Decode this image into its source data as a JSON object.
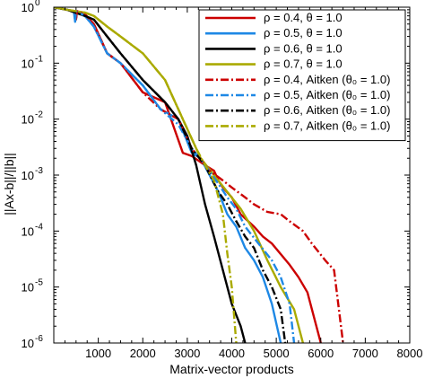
{
  "chart_data": {
    "type": "line",
    "title": "",
    "xlabel": "Matrix-vector products",
    "ylabel": "||Ax-b||/||b||",
    "xlim": [
      0,
      8000
    ],
    "ylim": [
      1e-06,
      1
    ],
    "yscale": "log",
    "grid": false,
    "legend_position": "top-right",
    "x_ticks": [
      "0",
      "1000",
      "2000",
      "3000",
      "4000",
      "5000",
      "6000",
      "7000",
      "8000"
    ],
    "y_ticks": [
      {
        "base": "10",
        "exp": "0"
      },
      {
        "base": "10",
        "exp": "-1"
      },
      {
        "base": "10",
        "exp": "-2"
      },
      {
        "base": "10",
        "exp": "-3"
      },
      {
        "base": "10",
        "exp": "-4"
      },
      {
        "base": "10",
        "exp": "-5"
      },
      {
        "base": "10",
        "exp": "-6"
      }
    ],
    "series": [
      {
        "name": "ρ = 0.4, θ = 1.0",
        "color": "#cc0000",
        "dash": "solid",
        "x": [
          0,
          300,
          450,
          500,
          520,
          700,
          900,
          1200,
          1500,
          2000,
          2500,
          2900,
          3100,
          3400,
          3600,
          3700,
          3800,
          4000,
          4200,
          4500,
          4700,
          4900,
          5300,
          5500,
          5700,
          6000
        ],
        "y": [
          1,
          0.9,
          0.85,
          0.6,
          0.85,
          0.75,
          0.5,
          0.15,
          0.1,
          0.03,
          0.02,
          0.0025,
          0.0022,
          0.0015,
          0.0012,
          0.0008,
          0.0006,
          0.0004,
          0.0002,
          0.00012,
          8e-05,
          6e-05,
          2.5e-05,
          1.5e-05,
          8e-06,
          1e-06
        ]
      },
      {
        "name": "ρ = 0.5, θ = 1.0",
        "color": "#1e88e5",
        "dash": "solid",
        "x": [
          0,
          300,
          450,
          480,
          500,
          700,
          900,
          1200,
          1500,
          2000,
          2400,
          2800,
          3100,
          3300,
          3500,
          3700,
          3900,
          4100,
          4300,
          4500,
          4700,
          4900,
          5100
        ],
        "y": [
          1,
          0.9,
          0.85,
          0.55,
          0.85,
          0.7,
          0.45,
          0.15,
          0.1,
          0.04,
          0.015,
          0.01,
          0.0025,
          0.002,
          0.001,
          0.0005,
          0.0002,
          0.00012,
          5e-05,
          3e-05,
          1.5e-05,
          5e-06,
          1e-06
        ]
      },
      {
        "name": "ρ = 0.6, θ = 1.0",
        "color": "#000000",
        "dash": "solid",
        "x": [
          0,
          300,
          700,
          900,
          1200,
          1500,
          2000,
          2500,
          2800,
          3000,
          3200,
          3400,
          3600,
          3800,
          4000,
          4200,
          4300
        ],
        "y": [
          1,
          0.9,
          0.7,
          0.6,
          0.3,
          0.15,
          0.05,
          0.02,
          0.01,
          0.005,
          0.0015,
          0.0003,
          8e-05,
          2e-05,
          5e-06,
          2e-06,
          1e-06
        ]
      },
      {
        "name": "ρ = 0.7, θ = 1.0",
        "color": "#aaaa00",
        "dash": "solid",
        "x": [
          0,
          300,
          700,
          900,
          1200,
          1500,
          2000,
          2500,
          2900,
          3300,
          3600,
          3900,
          4200,
          4500,
          4800,
          5100,
          5400,
          5600
        ],
        "y": [
          1,
          0.9,
          0.8,
          0.7,
          0.45,
          0.3,
          0.15,
          0.05,
          0.01,
          0.002,
          0.001,
          0.0005,
          0.00025,
          0.0001,
          3e-05,
          1e-05,
          4e-06,
          1e-06
        ]
      },
      {
        "name": "ρ = 0.4, Aitken (θ₀ = 1.0)",
        "color": "#cc0000",
        "dash": "dashdot",
        "x": [
          0,
          300,
          450,
          500,
          520,
          700,
          900,
          1200,
          1500,
          2000,
          2400,
          2800,
          3100,
          3500,
          3800,
          4000,
          4300,
          4500,
          4800,
          5100,
          5300,
          5600,
          5800,
          6100,
          6300,
          6500
        ],
        "y": [
          1,
          0.9,
          0.85,
          0.6,
          0.85,
          0.75,
          0.5,
          0.15,
          0.1,
          0.03,
          0.015,
          0.01,
          0.003,
          0.0012,
          0.0008,
          0.0006,
          0.0004,
          0.0003,
          0.00022,
          0.0002,
          0.00015,
          0.0001,
          6e-05,
          3e-05,
          2e-05,
          1e-06
        ]
      },
      {
        "name": "ρ = 0.5, Aitken (θ₀ = 1.0)",
        "color": "#1e88e5",
        "dash": "dashdot",
        "x": [
          0,
          300,
          450,
          480,
          500,
          700,
          900,
          1200,
          1500,
          2000,
          2400,
          2800,
          3100,
          3400,
          3700,
          3900,
          4100,
          4300,
          4600,
          4900,
          5100,
          5300,
          5400
        ],
        "y": [
          1,
          0.9,
          0.85,
          0.55,
          0.85,
          0.7,
          0.45,
          0.15,
          0.1,
          0.04,
          0.015,
          0.008,
          0.003,
          0.0015,
          0.0007,
          0.0004,
          0.00025,
          0.00012,
          6e-05,
          3e-05,
          1.5e-05,
          5e-06,
          1e-06
        ]
      },
      {
        "name": "ρ = 0.6, Aitken (θ₀ = 1.0)",
        "color": "#000000",
        "dash": "dashdot",
        "x": [
          0,
          300,
          700,
          900,
          1200,
          1500,
          2000,
          2500,
          2800,
          3100,
          3400,
          3700,
          3900,
          4100,
          4300,
          4500,
          4700,
          4900,
          5100,
          5200
        ],
        "y": [
          1,
          0.9,
          0.7,
          0.6,
          0.3,
          0.15,
          0.05,
          0.02,
          0.01,
          0.003,
          0.0015,
          0.0005,
          0.0003,
          0.00015,
          8e-05,
          5e-05,
          2e-05,
          1e-05,
          4e-06,
          1e-06
        ]
      },
      {
        "name": "ρ = 0.7, Aitken (θ₀ = 1.0)",
        "color": "#aaaa00",
        "dash": "dashdot",
        "x": [
          0,
          300,
          700,
          900,
          1200,
          1500,
          2000,
          2500,
          2900,
          3200,
          3400,
          3600,
          3800,
          3900,
          4000,
          4100
        ],
        "y": [
          1,
          0.9,
          0.8,
          0.7,
          0.45,
          0.3,
          0.15,
          0.05,
          0.01,
          0.003,
          0.0015,
          0.0008,
          0.0002,
          4e-05,
          1e-05,
          1e-06
        ]
      }
    ]
  }
}
